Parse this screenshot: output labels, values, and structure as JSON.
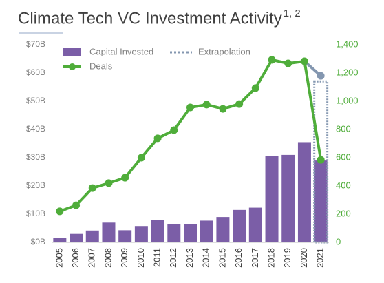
{
  "chart_data": {
    "type": "bar-line",
    "title": "Climate Tech VC Investment Activity",
    "title_superscript": "1, 2",
    "categories": [
      "2005",
      "2006",
      "2007",
      "2008",
      "2009",
      "2010",
      "2011",
      "2012",
      "2013",
      "2014",
      "2015",
      "2016",
      "2017",
      "2018",
      "2019",
      "2020",
      "2021"
    ],
    "series": [
      {
        "name": "Capital Invested",
        "color": "#7b5ea7",
        "type": "bar",
        "axis": "y",
        "values": [
          1.5,
          3,
          4.2,
          7,
          4.3,
          5.8,
          8,
          6.5,
          6.5,
          7.7,
          9,
          11.5,
          12.3,
          30.5,
          31,
          35.5,
          29
        ]
      },
      {
        "name": "Deals",
        "color": "#4fad3a",
        "type": "line",
        "axis": "y2",
        "values": [
          220,
          263,
          385,
          420,
          458,
          600,
          737,
          795,
          956,
          976,
          946,
          980,
          1093,
          1293,
          1268,
          1283,
          585
        ]
      },
      {
        "name": "Extrapolation",
        "color": "#8497b0",
        "type": "extrapolation",
        "values": [
          null,
          null,
          null,
          null,
          null,
          null,
          null,
          null,
          null,
          null,
          null,
          null,
          null,
          null,
          null,
          null,
          57
        ],
        "deals": [
          null,
          null,
          null,
          null,
          null,
          null,
          null,
          null,
          null,
          null,
          null,
          null,
          null,
          null,
          null,
          null,
          1180
        ]
      }
    ],
    "ylim": [
      0,
      70
    ],
    "yticks": [
      {
        "value": 0,
        "label": "$0B"
      },
      {
        "value": 10,
        "label": "$10B"
      },
      {
        "value": 20,
        "label": "$20B"
      },
      {
        "value": 30,
        "label": "$30B"
      },
      {
        "value": 40,
        "label": "$40B"
      },
      {
        "value": 50,
        "label": "$50B"
      },
      {
        "value": 60,
        "label": "$60B"
      },
      {
        "value": 70,
        "label": "$70B"
      }
    ],
    "y2lim": [
      0,
      1400
    ],
    "y2ticks": [
      0,
      200,
      400,
      600,
      800,
      {
        "value": 1000,
        "label": "1,000"
      },
      {
        "value": 1200,
        "label": "1,200"
      },
      {
        "value": 1400,
        "label": "1,400"
      }
    ],
    "grid": false
  }
}
